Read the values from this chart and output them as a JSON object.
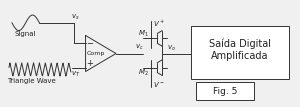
{
  "bg_color": "#f0f0f0",
  "line_color": "#333333",
  "box_color": "#ffffff",
  "text_color": "#222222",
  "fig_width": 3.0,
  "fig_height": 1.07,
  "dpi": 100,
  "signal_label": "Signal",
  "triangle_label": "Triangle Wave",
  "vs_label": "v_s",
  "vt_label": "v_T",
  "vc_label": "v_c",
  "vo_label": "v_o",
  "vplus_label": "V^+",
  "vminus_label": "V^-",
  "m1_label": "M_1",
  "m2_label": "M_2",
  "comp_label": "Comp",
  "output_box_text": "Saída Digital\nAmplificada",
  "fig_label": "Fig. 5"
}
